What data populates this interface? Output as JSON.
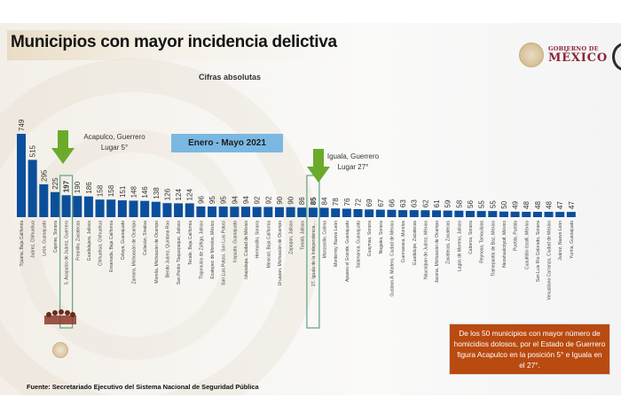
{
  "header": {
    "title": "Municipios con mayor incidencia delictiva",
    "subtitle": "Cifras absolutas",
    "logo_top": "GOBIERNO DE",
    "logo_bottom": "MÉXICO"
  },
  "period_label": "Enero - Mayo 2021",
  "callouts": [
    {
      "line1": "Acapulco, Guerrero",
      "line2": "Lugar 5°",
      "rank": 5
    },
    {
      "line1": "Iguala, Guerrero",
      "line2": "Lugar 27°",
      "rank": 27
    }
  ],
  "note": "De los 50 municipios con mayor número de homicidios dolosos, por el Estado de Guerrero figura Acapulco en la posición 5° e Iguala en el 27°.",
  "source": "Fuente: Secretariado Ejecutivo del Sistema Nacional de Seguridad Pública",
  "colors": {
    "bar": "#0b4f9c",
    "highlight_border": "#6aa88c",
    "arrow": "#6aab2a",
    "period_box": "#7ab8e3",
    "note_box": "#b94a10",
    "logo": "#8a2638"
  },
  "chart_data": {
    "type": "bar",
    "title": "Municipios con mayor incidencia delictiva",
    "subtitle": "Cifras absolutas",
    "xlabel": "",
    "ylabel": "",
    "ylim": [
      0,
      749
    ],
    "grid": false,
    "legend": "none",
    "data_labels": true,
    "highlighted_indices": [
      4,
      26
    ],
    "categories": [
      "Tijuana, Baja California",
      "Juárez, Chihuahua",
      "León, Guanajuato",
      "Cajeme, Sonora",
      "5. Acapulco de Juárez, Guerrero",
      "Fresnillo, Zacatecas",
      "Guadalajara, Jalisco",
      "Chihuahua, Chihuahua",
      "Ensenada, Baja California",
      "Celaya, Guanajuato",
      "Zamora, Michoacán de Ocampo",
      "Culiacán, Sinaloa",
      "Morelia, Michoacán de Ocampo",
      "Benito Juárez, Quintana Roo",
      "San Pedro Tlaquepaque, Jalisco",
      "Tecate, Baja California",
      "Tlajomulco de Zúñiga, Jalisco",
      "Ecatepec de Morelos, México",
      "San Luis Potosí, San Luis Potosí",
      "Irapuato, Guanajuato",
      "Iztapalapa, Ciudad de México",
      "Hermosillo, Sonora",
      "Mexicali, Baja California",
      "Uruapan, Michoacán de Ocampo",
      "Zapopan, Jalisco",
      "Tonalá, Jalisco",
      "27. Iguala de la Independencia,...",
      "Manzanillo, Colima",
      "Monterrey, Nuevo León",
      "Apaseo el Grande, Guanajuato",
      "Salamanca, Guanajuato",
      "Guaymas, Sonora",
      "Nogales, Sonora",
      "Gustavo A. Madero, Ciudad de México",
      "Cuernavaca, Morelos",
      "Guadalupe, Zacatecas",
      "Naucalpan de Juárez, México",
      "Jacona, Michoacán de Ocampo",
      "Zacatecas, Zacatecas",
      "Lagos de Moreno, Jalisco",
      "Caborca, Sonora",
      "Reynosa, Tamaulipas",
      "Tlalnepantla de Baz, México",
      "Nezahualcóyotl, México",
      "Puebla, Puebla",
      "Cuautitlán Izcalli, México",
      "San Luis Río Colorado, Sonora",
      "Venustiano Carranza, Ciudad de México",
      "Juárez, Nuevo León",
      "Yuriria, Guanajuato"
    ],
    "values": [
      749,
      515,
      295,
      225,
      197,
      190,
      186,
      158,
      158,
      151,
      148,
      146,
      138,
      126,
      124,
      124,
      96,
      95,
      95,
      94,
      94,
      92,
      92,
      90,
      90,
      86,
      85,
      84,
      78,
      76,
      72,
      69,
      67,
      66,
      63,
      63,
      62,
      61,
      59,
      58,
      56,
      55,
      55,
      50,
      49,
      48,
      48,
      48,
      47,
      47
    ]
  }
}
